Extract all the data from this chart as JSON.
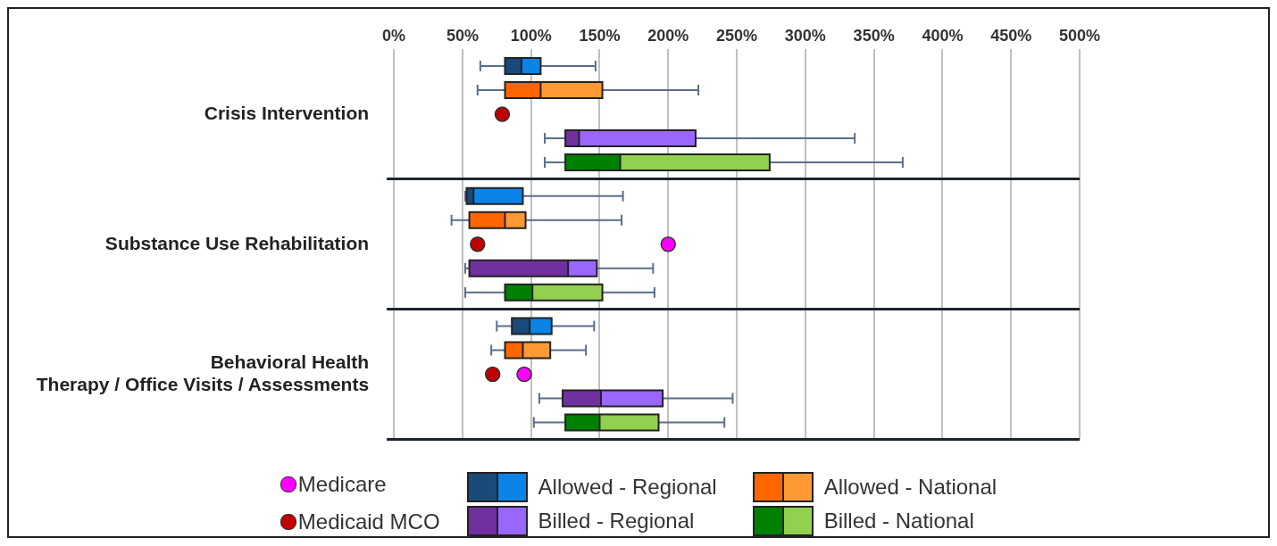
{
  "chart_data": {
    "type": "box",
    "orientation": "horizontal",
    "categories": [
      "Crisis Intervention",
      "Substance Use Rehabilitation",
      "Behavioral Health\nTherapy / Office Visits / Assessments"
    ],
    "xlim": [
      0,
      500
    ],
    "xticks": [
      {
        "value": 0,
        "label": "0%"
      },
      {
        "value": 50,
        "label": "50%"
      },
      {
        "value": 100,
        "label": "100%"
      },
      {
        "value": 150,
        "label": "150%"
      },
      {
        "value": 200,
        "label": "200%"
      },
      {
        "value": 250,
        "label": "250%"
      },
      {
        "value": 300,
        "label": "300%"
      },
      {
        "value": 350,
        "label": "350%"
      },
      {
        "value": 400,
        "label": "400%"
      },
      {
        "value": 450,
        "label": "450%"
      },
      {
        "value": 500,
        "label": "500%"
      }
    ],
    "grid": "x",
    "legend": "bottom",
    "series": [
      {
        "name": "Allowed - Regional",
        "type": "box",
        "color": "#0a84e6",
        "colors": [
          "#1a4a7a",
          "#1a4a7a",
          "#1a4a7a"
        ],
        "boxes": [
          {
            "low": 63,
            "q1": 81,
            "median": 93,
            "q3": 107,
            "high": 147
          },
          {
            "low": 52,
            "q1": 53,
            "median": 58,
            "q3": 94,
            "high": 167
          },
          {
            "low": 75,
            "q1": 86,
            "median": 99,
            "q3": 115,
            "high": 146
          }
        ]
      },
      {
        "name": "Allowed - National",
        "type": "box",
        "color": "#ff9933",
        "colors": [
          "#ff6600",
          "#ff6600",
          "#ff6600"
        ],
        "boxes": [
          {
            "low": 61,
            "q1": 81,
            "median": 107,
            "q3": 152,
            "high": 222
          },
          {
            "low": 42,
            "q1": 55,
            "median": 81,
            "q3": 96,
            "high": 166
          },
          {
            "low": 71,
            "q1": 81,
            "median": 94,
            "q3": 114,
            "high": 140
          }
        ]
      },
      {
        "name": "Medicare",
        "type": "scatter",
        "color": "#ff00ff",
        "values": [
          null,
          200,
          95
        ]
      },
      {
        "name": "Medicaid MCO",
        "type": "scatter",
        "color": "#c00000",
        "values": [
          79,
          61,
          72
        ]
      },
      {
        "name": "Billed - Regional",
        "type": "box",
        "color": "#9966ff",
        "colors": [
          "#7030a0",
          "#7030a0",
          "#7030a0"
        ],
        "boxes": [
          {
            "low": 110,
            "q1": 125,
            "median": 135,
            "q3": 220,
            "high": 336
          },
          {
            "low": 52,
            "q1": 55,
            "median": 127,
            "q3": 148,
            "high": 189
          },
          {
            "low": 106,
            "q1": 123,
            "median": 151,
            "q3": 196,
            "high": 247
          }
        ]
      },
      {
        "name": "Billed - National",
        "type": "box",
        "color": "#92d050",
        "colors": [
          "#008000",
          "#008000",
          "#008000"
        ],
        "boxes": [
          {
            "low": 110,
            "q1": 125,
            "median": 165,
            "q3": 274,
            "high": 371
          },
          {
            "low": 52,
            "q1": 81,
            "median": 101,
            "q3": 152,
            "high": 190
          },
          {
            "low": 102,
            "q1": 125,
            "median": 150,
            "q3": 193,
            "high": 241
          }
        ]
      }
    ]
  }
}
